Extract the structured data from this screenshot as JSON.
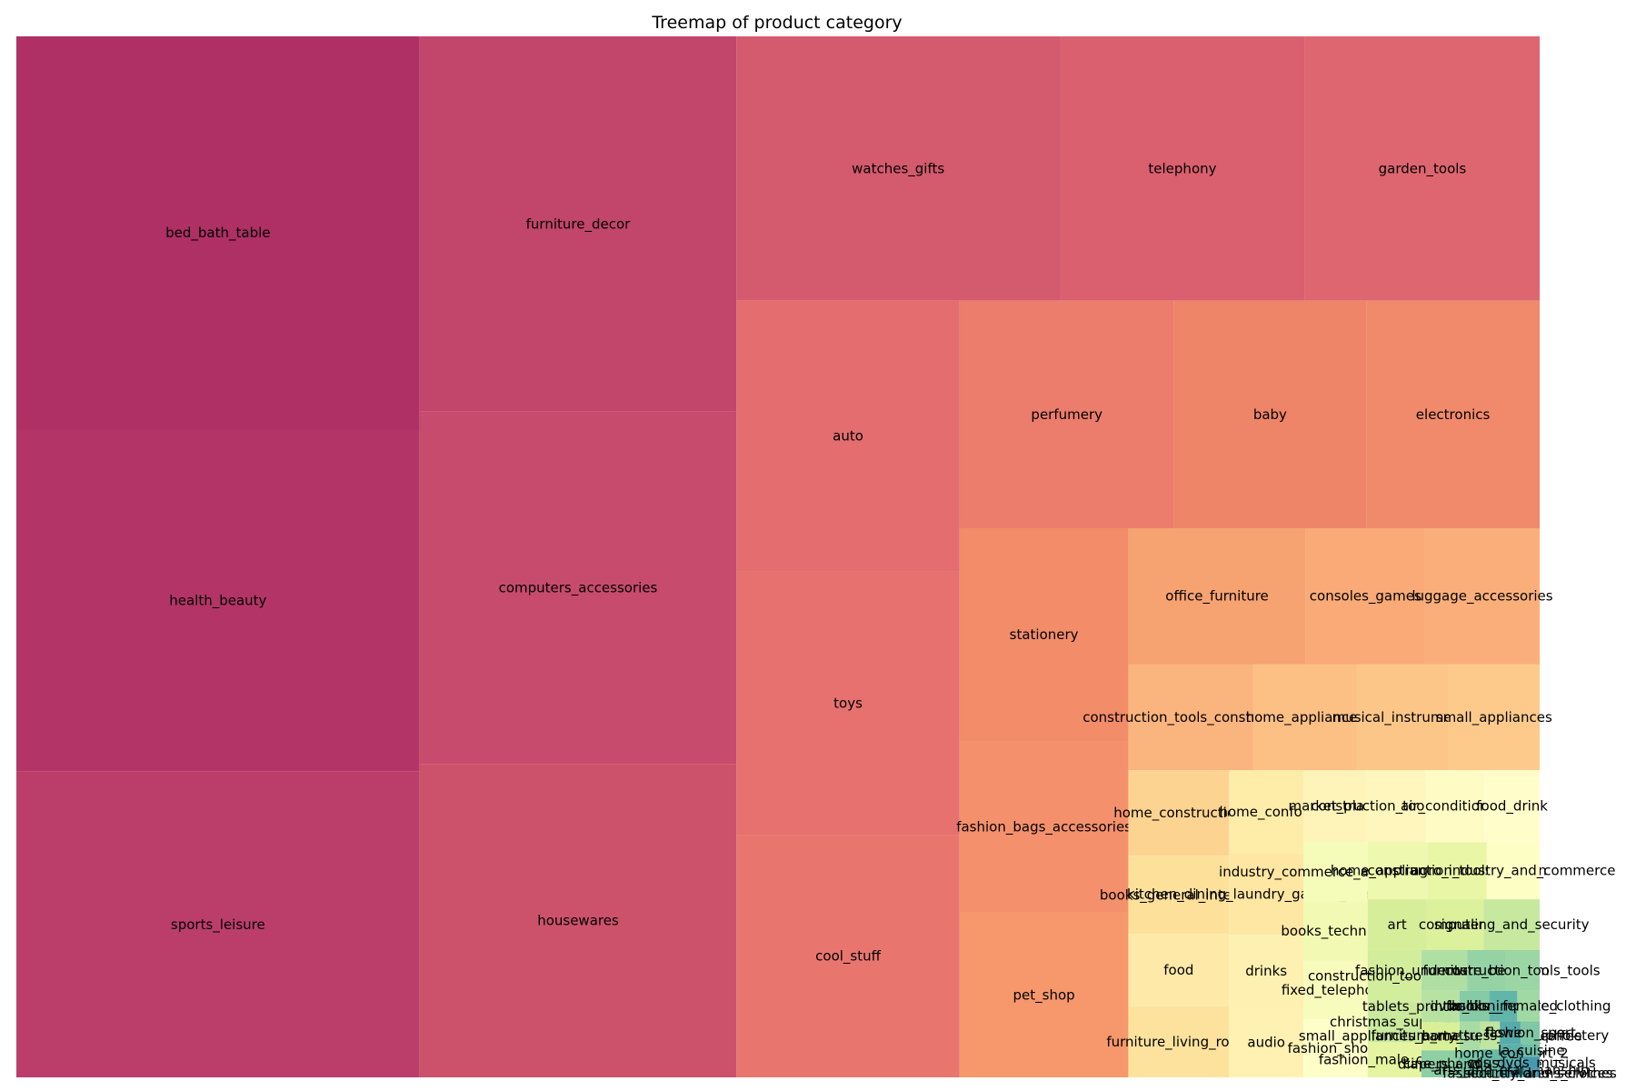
{
  "chart_data": {
    "type": "treemap",
    "title": "Treemap of product category",
    "colormap": "Spectral",
    "categories": [
      {
        "label": "bed_bath_table",
        "value": 11115,
        "color": "#ae3065"
      },
      {
        "label": "health_beauty",
        "value": 9670,
        "color": "#b33567"
      },
      {
        "label": "sports_leisure",
        "value": 8641,
        "color": "#bb3e6a"
      },
      {
        "label": "furniture_decor",
        "value": 8334,
        "color": "#c2456b"
      },
      {
        "label": "computers_accessories",
        "value": 7827,
        "color": "#c74b6c"
      },
      {
        "label": "housewares",
        "value": 6964,
        "color": "#cc526c"
      },
      {
        "label": "watches_gifts",
        "value": 5991,
        "color": "#d45a6e"
      },
      {
        "label": "telephony",
        "value": 4545,
        "color": "#da606f"
      },
      {
        "label": "garden_tools",
        "value": 4347,
        "color": "#de6670"
      },
      {
        "label": "auto",
        "value": 4235,
        "color": "#e36d6f"
      },
      {
        "label": "toys",
        "value": 4117,
        "color": "#e6716e"
      },
      {
        "label": "cool_stuff",
        "value": 3796,
        "color": "#e8766e"
      },
      {
        "label": "perfumery",
        "value": 3419,
        "color": "#ec7c6b"
      },
      {
        "label": "baby",
        "value": 3065,
        "color": "#ee8468"
      },
      {
        "label": "electronics",
        "value": 2767,
        "color": "#f08a6a"
      },
      {
        "label": "stationery",
        "value": 2517,
        "color": "#f28c69"
      },
      {
        "label": "fashion_bags_accessories",
        "value": 2031,
        "color": "#f4916c"
      },
      {
        "label": "pet_shop",
        "value": 1947,
        "color": "#f6976c"
      },
      {
        "label": "office_furniture",
        "value": 1691,
        "color": "#f7a271"
      },
      {
        "label": "consoles_games",
        "value": 1137,
        "color": "#f9aa77"
      },
      {
        "label": "luggage_accessories",
        "value": 1092,
        "color": "#faaf7a"
      },
      {
        "label": "construction_tools_construction",
        "value": 929,
        "color": "#fab47d"
      },
      {
        "label": "home_appliances",
        "value": 771,
        "color": "#fcbf84"
      },
      {
        "label": "musical_instruments",
        "value": 680,
        "color": "#fcc689"
      },
      {
        "label": "small_appliances",
        "value": 679,
        "color": "#fdca8b"
      },
      {
        "label": "home_construction",
        "value": 604,
        "color": "#fdd391"
      },
      {
        "label": "books_general_interest",
        "value": 553,
        "color": "#fde09a"
      },
      {
        "label": "furniture_living_room",
        "value": 503,
        "color": "#fde29d"
      },
      {
        "label": "kitchen_dining_laundry_garden_furniture",
        "value": 421,
        "color": "#fee6a3"
      },
      {
        "label": "food",
        "value": 510,
        "color": "#fee9a8"
      },
      {
        "label": "home_confort",
        "value": 435,
        "color": "#feeca9"
      },
      {
        "label": "drinks",
        "value": 379,
        "color": "#fef0b0"
      },
      {
        "label": "audio",
        "value": 364,
        "color": "#fef1b2"
      },
      {
        "label": "market_place",
        "value": 311,
        "color": "#fef3b8"
      },
      {
        "label": "construction_tools_lights",
        "value": 304,
        "color": "#fef6bc"
      },
      {
        "label": "air_conditioning",
        "value": 297,
        "color": "#fffbc5"
      },
      {
        "label": "food_drink",
        "value": 278,
        "color": "#fffdca"
      },
      {
        "label": "fashion_shoes",
        "value": 262,
        "color": "#feffc8"
      },
      {
        "label": "agro_industry_and_commerce",
        "value": 212,
        "color": "#fcfec4"
      },
      {
        "label": "fixed_telephony",
        "value": 264,
        "color": "#f7fbbc"
      },
      {
        "label": "industry_commerce_and_business",
        "value": 268,
        "color": "#f5fbb8"
      },
      {
        "label": "books_technical",
        "value": 267,
        "color": "#f1f9b2"
      },
      {
        "label": "home_appliances_2",
        "value": 240,
        "color": "#eef8ae"
      },
      {
        "label": "construction_tools_garden",
        "value": 238,
        "color": "#e9f6a6"
      },
      {
        "label": "fashion_male_clothing",
        "value": 132,
        "color": "#e5f4a0"
      },
      {
        "label": "computers",
        "value": 203,
        "color": "#dcf19b"
      },
      {
        "label": "small_appliances_home_oven_and_coffee",
        "value": 76,
        "color": "#d9f099"
      },
      {
        "label": "construction_tools_safety",
        "value": 194,
        "color": "#d2ed9c"
      },
      {
        "label": "christmas_supplies",
        "value": 153,
        "color": "#cbea9e"
      },
      {
        "label": "signaling_and_security",
        "value": 199,
        "color": "#c6e89f"
      },
      {
        "label": "furniture_mattress_and_upholstery",
        "value": 38,
        "color": "#bfe5a0"
      },
      {
        "label": "tablets_printing_image",
        "value": 83,
        "color": "#b8e2a2"
      },
      {
        "label": "fashion_underwear_beach",
        "value": 131,
        "color": "#b0dfa3"
      },
      {
        "label": "party_supplies",
        "value": 43,
        "color": "#a9dca4"
      },
      {
        "label": "fashion_female_clothing",
        "value": 48,
        "color": "#a1d9a4"
      },
      {
        "label": "costruction_tools_tools",
        "value": 99,
        "color": "#9cd6a4"
      },
      {
        "label": "furniture_bedroom",
        "value": 109,
        "color": "#95d3a4"
      },
      {
        "label": "cine_photo",
        "value": 72,
        "color": "#8ecfa4"
      },
      {
        "label": "dvds_blu_ray",
        "value": 64,
        "color": "#86cba5"
      },
      {
        "label": "fashion_sport",
        "value": 30,
        "color": "#7fc7a5"
      },
      {
        "label": "diapers_and_hygiene",
        "value": 39,
        "color": "#77c3a5"
      },
      {
        "label": "la_cuisine",
        "value": 15,
        "color": "#70bfa6"
      },
      {
        "label": "music",
        "value": 38,
        "color": "#69baa7"
      },
      {
        "label": "books_imported",
        "value": 60,
        "color": "#62b5a9"
      },
      {
        "label": "home_comfort_2",
        "value": 30,
        "color": "#5cb0aa"
      },
      {
        "label": "flowers",
        "value": 33,
        "color": "#57abab"
      },
      {
        "label": "arts_and_craftmanship",
        "value": 24,
        "color": "#51a5ad"
      },
      {
        "label": "fashion_childrens_clothes",
        "value": 8,
        "color": "#4c9fae"
      },
      {
        "label": "cds_dvds_musicals",
        "value": 14,
        "color": "#4899b0"
      },
      {
        "label": "security_and_services",
        "value": 2,
        "color": "#4593b2"
      },
      {
        "label": "art",
        "value": 209,
        "color": "#d6ee9a"
      }
    ]
  }
}
